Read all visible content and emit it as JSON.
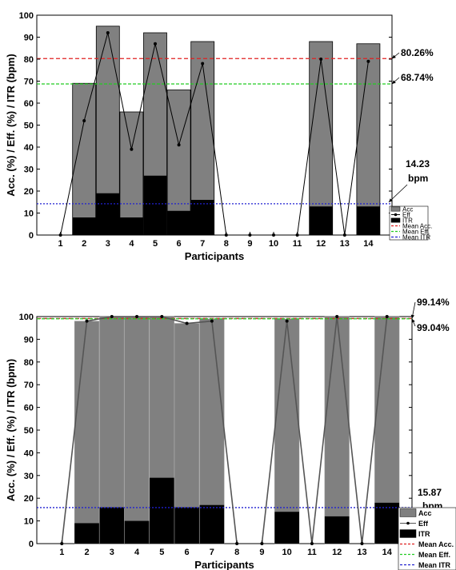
{
  "chart_data": [
    {
      "type": "bar",
      "title": "",
      "xlabel": "Participants",
      "ylabel": "Acc. (%)  / Eff. (%)  / ITR (bpm)",
      "categories": [
        "1",
        "2",
        "3",
        "4",
        "5",
        "6",
        "7",
        "8",
        "9",
        "10",
        "11",
        "12",
        "13",
        "14"
      ],
      "ylim": [
        0,
        100
      ],
      "yticks": [
        "0",
        "10",
        "20",
        "30",
        "40",
        "50",
        "60",
        "70",
        "80",
        "90",
        "100"
      ],
      "grid": false,
      "legend_position": "lower-right",
      "series": [
        {
          "name": "Acc",
          "kind": "bar",
          "color": "#808080",
          "values": [
            0,
            69,
            95,
            56,
            92,
            66,
            88,
            0,
            0,
            0,
            0,
            88,
            0,
            87
          ]
        },
        {
          "name": "Eff",
          "kind": "line",
          "color": "#000000",
          "values": [
            0,
            52,
            92,
            39,
            87,
            41,
            78,
            0,
            0,
            0,
            0,
            80,
            0,
            79
          ]
        },
        {
          "name": "ITR",
          "kind": "bar",
          "color": "#000000",
          "values": [
            0,
            8,
            19,
            8,
            27,
            11,
            16,
            0,
            0,
            0,
            0,
            13,
            0,
            13
          ]
        },
        {
          "name": "Mean Acc.",
          "kind": "hline",
          "color": "#e02020",
          "value": 80.26
        },
        {
          "name": "Mean Eff.",
          "kind": "hline",
          "color": "#22cc22",
          "value": 68.74
        },
        {
          "name": "Mean ITR",
          "kind": "hline",
          "color": "#2020d0",
          "value": 14.23
        }
      ],
      "annotations": [
        {
          "text": "80.26%",
          "series": "Mean Acc."
        },
        {
          "text": "68.74%",
          "series": "Mean Eff."
        },
        {
          "text": "14.23",
          "text2": "bpm",
          "series": "Mean ITR"
        }
      ]
    },
    {
      "type": "bar",
      "title": "",
      "xlabel": "Participants",
      "ylabel": "Acc. (%)  / Eff. (%)  / ITR (bpm)",
      "categories": [
        "1",
        "2",
        "3",
        "4",
        "5",
        "6",
        "7",
        "8",
        "9",
        "10",
        "11",
        "12",
        "13",
        "14"
      ],
      "ylim": [
        0,
        100
      ],
      "yticks": [
        "0",
        "10",
        "20",
        "30",
        "40",
        "50",
        "60",
        "70",
        "80",
        "90",
        "100"
      ],
      "grid": false,
      "legend_position": "lower-right",
      "series": [
        {
          "name": "Acc",
          "kind": "bar",
          "color": "#808080",
          "values": [
            0,
            98,
            100,
            100,
            100,
            97,
            99,
            0,
            0,
            99,
            0,
            100,
            0,
            100
          ]
        },
        {
          "name": "Eff",
          "kind": "line",
          "color": "#555555",
          "values": [
            0,
            98,
            100,
            100,
            100,
            97,
            98,
            0,
            0,
            98,
            0,
            100,
            0,
            100
          ]
        },
        {
          "name": "ITR",
          "kind": "bar",
          "color": "#000000",
          "values": [
            0,
            9,
            16,
            10,
            29,
            16,
            17,
            0,
            0,
            14,
            0,
            12,
            0,
            18
          ]
        },
        {
          "name": "Mean Acc.",
          "kind": "hline",
          "color": "#e02020",
          "value": 99.14
        },
        {
          "name": "Mean Eff.",
          "kind": "hline",
          "color": "#22cc22",
          "value": 99.04
        },
        {
          "name": "Mean ITR",
          "kind": "hline",
          "color": "#2020d0",
          "value": 15.87
        }
      ],
      "annotations": [
        {
          "text": "99.14%",
          "series": "Mean Acc."
        },
        {
          "text": "99.04%",
          "series": "Mean Eff."
        },
        {
          "text": "15.87",
          "text2": "bpm",
          "series": "Mean ITR"
        }
      ]
    }
  ]
}
